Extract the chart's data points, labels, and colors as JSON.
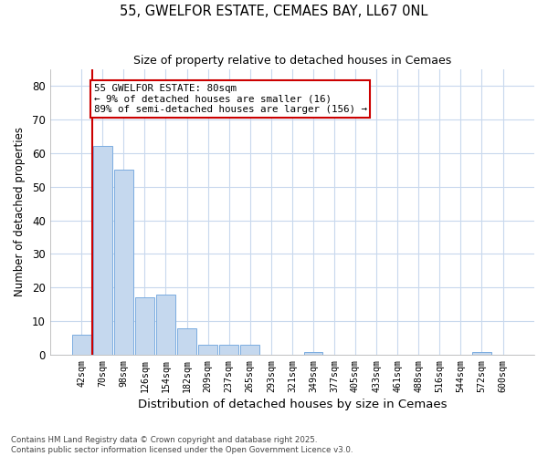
{
  "title": "55, GWELFOR ESTATE, CEMAES BAY, LL67 0NL",
  "subtitle": "Size of property relative to detached houses in Cemaes",
  "xlabel": "Distribution of detached houses by size in Cemaes",
  "ylabel": "Number of detached properties",
  "categories": [
    "42sqm",
    "70sqm",
    "98sqm",
    "126sqm",
    "154sqm",
    "182sqm",
    "209sqm",
    "237sqm",
    "265sqm",
    "293sqm",
    "321sqm",
    "349sqm",
    "377sqm",
    "405sqm",
    "433sqm",
    "461sqm",
    "488sqm",
    "516sqm",
    "544sqm",
    "572sqm",
    "600sqm"
  ],
  "values": [
    6,
    62,
    55,
    17,
    18,
    8,
    3,
    3,
    3,
    0,
    0,
    1,
    0,
    0,
    0,
    0,
    0,
    0,
    0,
    1,
    0
  ],
  "bar_color": "#c5d8ee",
  "bar_edge_color": "#7aace0",
  "grid_color": "#c8d8ed",
  "background_color": "#ffffff",
  "annotation_box_color": "#cc0000",
  "property_line_color": "#cc0000",
  "annotation_text": "55 GWELFOR ESTATE: 80sqm\n← 9% of detached houses are smaller (16)\n89% of semi-detached houses are larger (156) →",
  "ylim": [
    0,
    85
  ],
  "yticks": [
    0,
    10,
    20,
    30,
    40,
    50,
    60,
    70,
    80
  ],
  "footer": "Contains HM Land Registry data © Crown copyright and database right 2025.\nContains public sector information licensed under the Open Government Licence v3.0.",
  "bar_width": 0.9,
  "property_line_bar_index": 1
}
